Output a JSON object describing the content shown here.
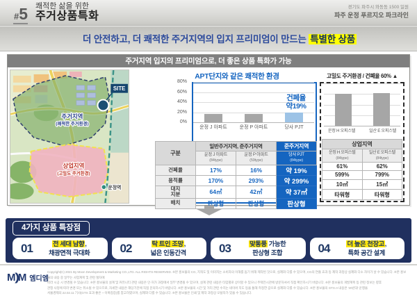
{
  "header": {
    "badge_hash": "#",
    "badge_num": "5",
    "title_line1": "쾌적한 삶을 위한",
    "title_line2": "주거상품특화",
    "address": "경기도 파주시 와동동 1500 일원",
    "project": "파주 운정 푸르지오 파크라인",
    "subtitle_prefix": "더 안전하고, 더 쾌적한 주거지역의 입지 프리미엄이 만드는 ",
    "subtitle_highlight": "특별한 상품"
  },
  "panel": {
    "title": "주거지역 입지의 프리미엄으로, 더 좋은 상품 특화가 가능",
    "left_chart_title": "APT단지와 같은 쾌적한 환경",
    "right_chart_title": "고밀도 주거환경 / 건폐율 60% ▲",
    "annotation_line1": "건폐율",
    "annotation_line2": "약19%"
  },
  "map": {
    "site_label": "SITE",
    "residential_label": "주거지역",
    "residential_sub": "(쾌적한 주거환경)",
    "commercial_label": "상업지역",
    "commercial_sub": "(고밀도 주거환경)",
    "station_label": "운정역"
  },
  "chart_data": [
    {
      "type": "bar",
      "title": "APT단지와 같은 쾌적한 환경",
      "categories": [
        "운정 J 아파트",
        "운정 P 아파트",
        "당사 PJT"
      ],
      "values": [
        17,
        16,
        19
      ],
      "unit": "%",
      "ylim": [
        0,
        80
      ],
      "yticks": [
        0,
        20,
        40,
        60,
        80
      ],
      "ytick_labels": [
        "0%",
        "20%",
        "40%",
        "60%",
        "80%"
      ],
      "grid": true,
      "legend": "none",
      "bar_colors": [
        "#a6a6a6",
        "#a6a6a6",
        "#9dc3e6"
      ],
      "annotation": "건폐율 약19%"
    },
    {
      "type": "bar",
      "title": "고밀도 주거환경 / 건폐율 60% ▲",
      "categories": [
        "운정 H 오피스텔",
        "일산 E 오피스텔"
      ],
      "values": [
        61,
        62
      ],
      "unit": "%",
      "ylim": [
        0,
        80
      ],
      "yticks": [
        0,
        20,
        40,
        60,
        80
      ],
      "grid": true,
      "legend": "none",
      "bar_colors": [
        "#a6a6a6",
        "#a6a6a6"
      ]
    }
  ],
  "left_table": {
    "row_header": "구분",
    "col_group_header": "일반주거지역, 준주거지역",
    "highlight_group_header": "준주거지역",
    "columns": [
      {
        "name": "운정 J 아파트",
        "sub": "(84type)"
      },
      {
        "name": "운정 P 아파트",
        "sub": "(59type)"
      },
      {
        "name": "당사 PJT",
        "sub": "(84type)"
      }
    ],
    "rows": [
      {
        "label": "건폐율",
        "values": [
          "17%",
          "16%",
          "약 19%"
        ]
      },
      {
        "label": "용적률",
        "values": [
          "170%",
          "293%",
          "약 299%"
        ]
      },
      {
        "label": "대지\n지분",
        "values": [
          "64㎡",
          "42㎡",
          "약 37㎡"
        ]
      },
      {
        "label": "배치",
        "values": [
          "판상형",
          "판상형",
          "판상형"
        ]
      }
    ]
  },
  "right_table": {
    "group_header": "상업지역",
    "columns": [
      {
        "name": "운정 H 오피스텔",
        "sub": "(84type)"
      },
      {
        "name": "일산 E 오피스텔",
        "sub": "(84type)"
      }
    ],
    "rows": [
      [
        "61%",
        "62%"
      ],
      [
        "599%",
        "799%"
      ],
      [
        "10㎡",
        "15㎡"
      ],
      [
        "타워형",
        "타워형"
      ]
    ]
  },
  "features": {
    "title": "4가지 상품 특장점",
    "items": [
      {
        "num": "01",
        "highlight": "전 세대 남향",
        "rest": ",",
        "line2": "채광면적 극대화"
      },
      {
        "num": "02",
        "highlight": "탁 트인 조망",
        "rest": ",",
        "line2": "넓은 인동간격"
      },
      {
        "num": "03",
        "highlight": "맞통풍",
        "rest": " 가능한",
        "line2": "판상형 조합"
      },
      {
        "num": "04",
        "highlight": "더 높은 천장고",
        "rest": ",",
        "line2": "특화 공간 설계"
      }
    ]
  },
  "footer": {
    "logo_m1": "M",
    "logo_paren": ")",
    "logo_m2": "M",
    "logo_name": "엠디엠",
    "copyright": [
      "Copyright(C) 2021 By Moon Development & Marketing CO.,LTD. ALL RIGHTS RESERVED. ※본 홍보물의 CG, 지적도 및 이미지는 소비자의 이해를 돕기 위해 제작된 것으로, 실제와 다를 수 있으며, CG의 연출 효과 등 제작 과정상 실제와 다소 차이가 날 수 있습니다. ※본 홍보물의 내용 중 일부는 사업계획 및 관련 절차에",
      "따라 시공 시 변경될 수 있습니다. ※본 홍보물의 설계 및 커뮤니티 관련 내용은 인·허가 과정에서 일부 변경될 수 있으며, 설계 관련 내용은 타입별로 상이할 수 있으니 주택전시관에 방문하셔서 직접 확인하시기 바랍니다. ※본 홍보물의 개발계획 등 관련 정보는 향후",
      "관청 사정에 따라 변경 또는 취소될 수 있으므로, 자세한 내용은 해당기관에 직접 문의하시기 바랍니다. ※본 홍보물의 시간 및 거리 관련 수치는 네이버 지도 등을 통해 측정한 값으로 실제와 다를 수 있습니다. ※본 홍보물의 GTX-A 내용은 '20년대' 운행을",
      "서울경제의 22.02.11 기사(GTX 효과 좋은 ~ 이복접증)를 참고하였으며, 실제와 다를 수 있습니다. ※본 홍보물은 인쇄 및 제작 과정상 오탈자가 있을 수 있습니다."
    ]
  },
  "colors": {
    "accent_blue": "#1565c0",
    "navy": "#20305f",
    "highlight_yellow": "#ffff00",
    "bar_gray": "#a6a6a6",
    "bar_blue": "#9dc3e6",
    "title_bar_gray": "#7f7f7f"
  }
}
